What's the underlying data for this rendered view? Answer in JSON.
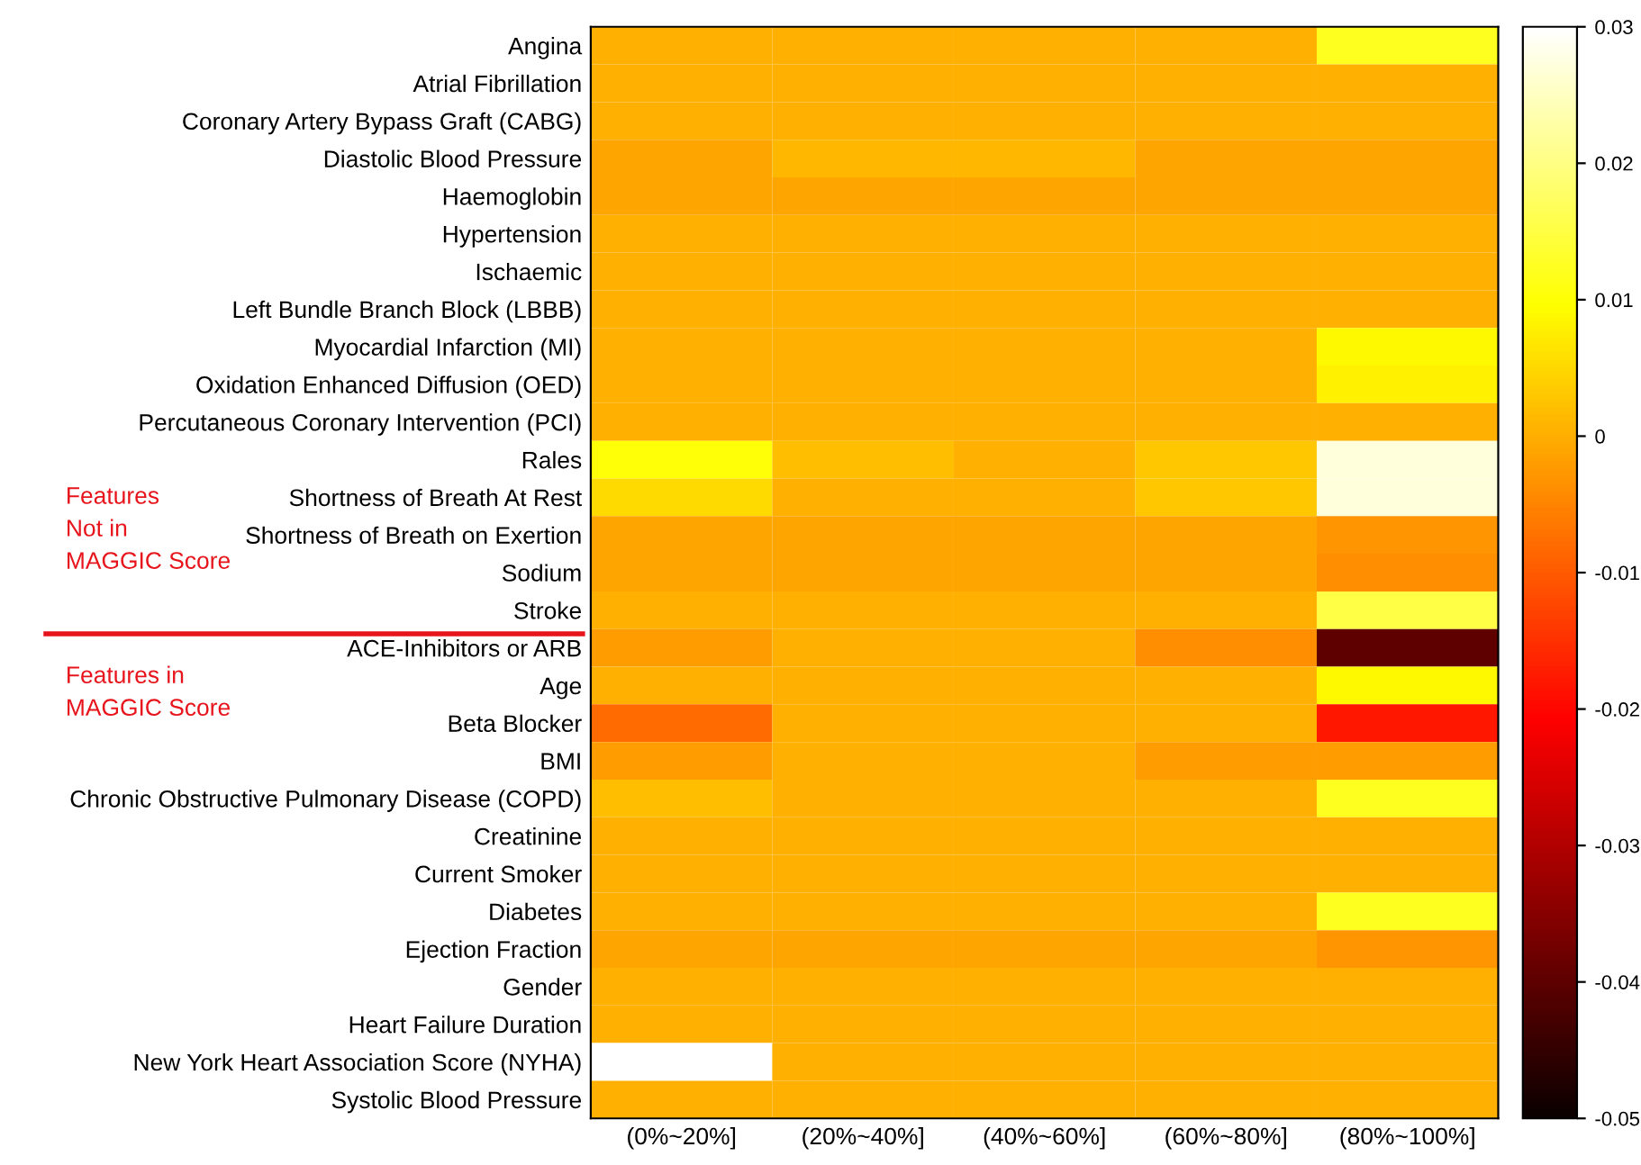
{
  "chart_data": {
    "type": "heatmap",
    "categories": [
      "(0%~20%]",
      "(20%~40%]",
      "(40%~60%]",
      "(60%~80%]",
      "(80%~100%]"
    ],
    "y_categories": [
      "Angina",
      "Atrial Fibrillation",
      "Coronary Artery Bypass Graft (CABG)",
      "Diastolic Blood Pressure",
      "Haemoglobin",
      "Hypertension",
      "Ischaemic",
      "Left Bundle Branch Block (LBBB)",
      "Myocardial Infarction (MI)",
      "Oxidation Enhanced Diffusion (OED)",
      "Percutaneous Coronary Intervention (PCI)",
      "Rales",
      "Shortness of Breath At Rest",
      "Shortness of Breath on Exertion",
      "Sodium",
      "Stroke",
      "ACE-Inhibitors or ARB",
      "Age",
      "Beta Blocker",
      "BMI",
      "Chronic Obstructive Pulmonary Disease (COPD)",
      "Creatinine",
      "Current Smoker",
      "Diabetes",
      "Ejection Fraction",
      "Gender",
      "Heart Failure Duration",
      "New York Heart Association Score (NYHA)",
      "Systolic Blood Pressure"
    ],
    "cells": [
      [
        0,
        0,
        0,
        0,
        0.012
      ],
      [
        0,
        0,
        0,
        0,
        0
      ],
      [
        0,
        0,
        0,
        0,
        0
      ],
      [
        -0.001,
        0.001,
        0.001,
        -0.001,
        -0.001
      ],
      [
        -0.001,
        -0.001,
        -0.001,
        -0.001,
        -0.001
      ],
      [
        0,
        0,
        0,
        0,
        0
      ],
      [
        0,
        0,
        0,
        0,
        0
      ],
      [
        0,
        0,
        0,
        0,
        0
      ],
      [
        0,
        0,
        0,
        0,
        0.009
      ],
      [
        0,
        0,
        0,
        0,
        0.008
      ],
      [
        0,
        0,
        0,
        0,
        0
      ],
      [
        0.01,
        0.002,
        0,
        0.003,
        0.027
      ],
      [
        0.005,
        0,
        0,
        0.003,
        0.027
      ],
      [
        -0.001,
        -0.001,
        -0.001,
        -0.001,
        -0.003
      ],
      [
        -0.001,
        -0.001,
        -0.001,
        -0.001,
        -0.004
      ],
      [
        0,
        0,
        0,
        0,
        0.015
      ],
      [
        -0.002,
        0,
        0,
        -0.004,
        -0.04
      ],
      [
        0,
        0,
        0,
        0,
        0.009
      ],
      [
        -0.008,
        0,
        0,
        0,
        -0.018
      ],
      [
        -0.002,
        0,
        0,
        -0.002,
        -0.002
      ],
      [
        0.002,
        0,
        0,
        0,
        0.012
      ],
      [
        0,
        0,
        0,
        0,
        0
      ],
      [
        0,
        0,
        0,
        0,
        0
      ],
      [
        0,
        0,
        0,
        0,
        0.012
      ],
      [
        -0.001,
        -0.001,
        -0.001,
        -0.001,
        -0.003
      ],
      [
        0,
        0,
        0,
        0,
        0
      ],
      [
        0,
        0,
        0,
        0,
        0
      ],
      [
        0.03,
        0,
        0,
        0,
        0
      ],
      [
        0,
        0,
        0,
        0,
        0
      ]
    ],
    "clim": [
      -0.05,
      0.03
    ],
    "cticks": [
      -0.05,
      -0.04,
      -0.03,
      -0.02,
      -0.01,
      0,
      0.01,
      0.02,
      0.03
    ],
    "annotations": [
      "Features\nNot in\nMAGGIC Score",
      "Features in\nMAGGIC Score"
    ]
  }
}
